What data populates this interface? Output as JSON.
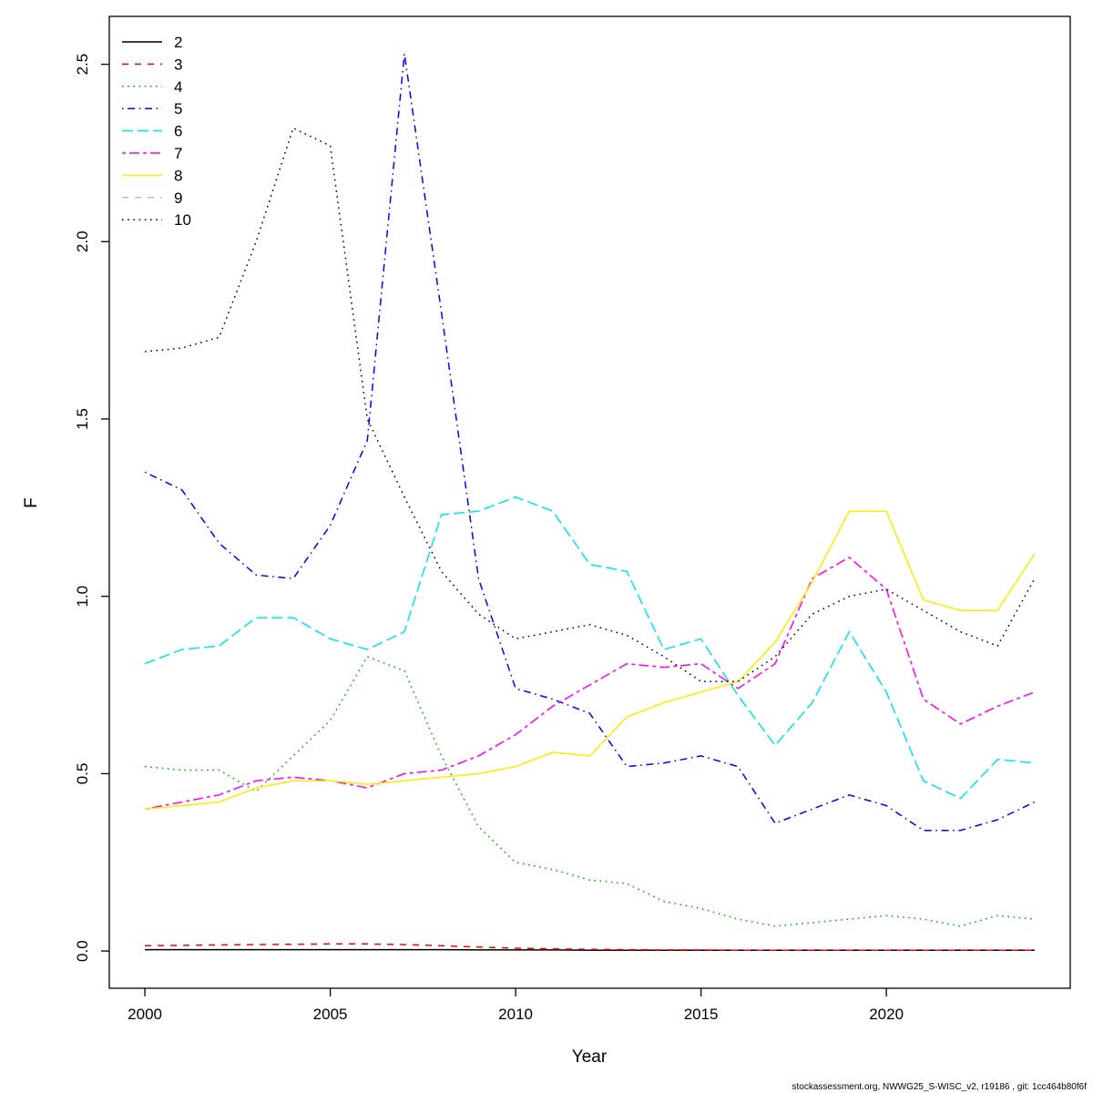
{
  "footer": {
    "text": "stockassessment.org, NWWG25_S-WISC_v2, r19186 , git: 1cc464b80f6f"
  },
  "chart_data": {
    "type": "line",
    "title": "",
    "xlabel": "Year",
    "ylabel": "F",
    "xlim": [
      1999.04,
      2024.96
    ],
    "ylim": [
      -0.105,
      2.635
    ],
    "grid": false,
    "legend_position": "topleft",
    "xticks": [
      2000,
      2005,
      2010,
      2015,
      2020
    ],
    "xtick_labels": [
      "2000",
      "2005",
      "2010",
      "2015",
      "2020"
    ],
    "yticks": [
      0.0,
      0.5,
      1.0,
      1.5,
      2.0,
      2.5
    ],
    "ytick_labels": [
      "0.0",
      "0.5",
      "1.0",
      "1.5",
      "2.0",
      "2.5"
    ],
    "x": [
      2000,
      2001,
      2002,
      2003,
      2004,
      2005,
      2006,
      2007,
      2008,
      2009,
      2010,
      2011,
      2012,
      2013,
      2014,
      2015,
      2016,
      2017,
      2018,
      2019,
      2020,
      2021,
      2022,
      2023,
      2024
    ],
    "series": [
      {
        "name": "2",
        "color": "#000000",
        "linetype": "solid",
        "values": [
          0.004,
          0.004,
          0.004,
          0.004,
          0.004,
          0.004,
          0.004,
          0.004,
          0.004,
          0.003,
          0.003,
          0.003,
          0.002,
          0.002,
          0.002,
          0.002,
          0.002,
          0.002,
          0.002,
          0.002,
          0.002,
          0.002,
          0.002,
          0.002,
          0.002
        ]
      },
      {
        "name": "3",
        "color": "#ff0000",
        "linetype": "dashed",
        "values": [
          0.015,
          0.016,
          0.017,
          0.018,
          0.019,
          0.02,
          0.02,
          0.018,
          0.015,
          0.011,
          0.008,
          0.006,
          0.005,
          0.004,
          0.003,
          0.003,
          0.002,
          0.002,
          0.002,
          0.002,
          0.002,
          0.002,
          0.002,
          0.002,
          0.002
        ]
      },
      {
        "name": "4",
        "color": "#00b000",
        "linetype": "dotted",
        "values": [
          0.52,
          0.51,
          0.51,
          0.45,
          0.55,
          0.65,
          0.83,
          0.79,
          0.55,
          0.35,
          0.25,
          0.23,
          0.2,
          0.19,
          0.14,
          0.12,
          0.09,
          0.07,
          0.08,
          0.09,
          0.1,
          0.09,
          0.07,
          0.1,
          0.09
        ]
      },
      {
        "name": "5",
        "color": "#0000ff",
        "linetype": "dotdash",
        "values": [
          1.35,
          1.3,
          1.15,
          1.06,
          1.05,
          1.2,
          1.44,
          2.53,
          1.8,
          1.05,
          0.74,
          0.71,
          0.67,
          0.52,
          0.53,
          0.55,
          0.52,
          0.36,
          0.4,
          0.44,
          0.41,
          0.34,
          0.34,
          0.37,
          0.42
        ]
      },
      {
        "name": "6",
        "color": "#00e5ee",
        "linetype": "longdash",
        "values": [
          0.81,
          0.85,
          0.86,
          0.94,
          0.94,
          0.88,
          0.85,
          0.9,
          1.23,
          1.24,
          1.28,
          1.24,
          1.09,
          1.07,
          0.85,
          0.88,
          0.72,
          0.58,
          0.7,
          0.9,
          0.73,
          0.48,
          0.43,
          0.54,
          0.53
        ]
      },
      {
        "name": "7",
        "color": "#ff00ff",
        "linetype": "twodash",
        "values": [
          0.4,
          0.42,
          0.44,
          0.48,
          0.49,
          0.48,
          0.46,
          0.5,
          0.51,
          0.55,
          0.61,
          0.69,
          0.75,
          0.81,
          0.8,
          0.81,
          0.74,
          0.81,
          1.05,
          1.11,
          1.02,
          0.71,
          0.64,
          0.69,
          0.73
        ]
      },
      {
        "name": "8",
        "color": "#ffee00",
        "linetype": "solid",
        "values": [
          0.4,
          0.41,
          0.42,
          0.46,
          0.48,
          0.48,
          0.47,
          0.48,
          0.49,
          0.5,
          0.52,
          0.56,
          0.55,
          0.66,
          0.7,
          0.73,
          0.76,
          0.87,
          1.04,
          1.24,
          1.24,
          0.99,
          0.96,
          0.96,
          1.12
        ]
      },
      {
        "name": "9",
        "color": "#bebebe",
        "linetype": "dashed",
        "z": 5.5,
        "values": [
          0.4,
          0.41,
          0.42,
          0.46,
          0.48,
          0.48,
          0.47,
          0.48,
          0.49,
          0.5,
          0.52,
          0.56,
          0.55,
          0.66,
          0.7,
          0.73,
          0.76,
          0.87,
          1.04,
          1.24,
          1.24,
          0.99,
          0.96,
          0.96,
          1.12
        ]
      },
      {
        "name": "10",
        "color": "#000000",
        "linetype": "dotted",
        "values": [
          1.69,
          1.7,
          1.73,
          2.0,
          2.32,
          2.27,
          1.5,
          1.28,
          1.07,
          0.95,
          0.88,
          0.9,
          0.92,
          0.89,
          0.83,
          0.76,
          0.76,
          0.83,
          0.95,
          1.0,
          1.02,
          0.96,
          0.9,
          0.86,
          1.05
        ]
      }
    ]
  }
}
